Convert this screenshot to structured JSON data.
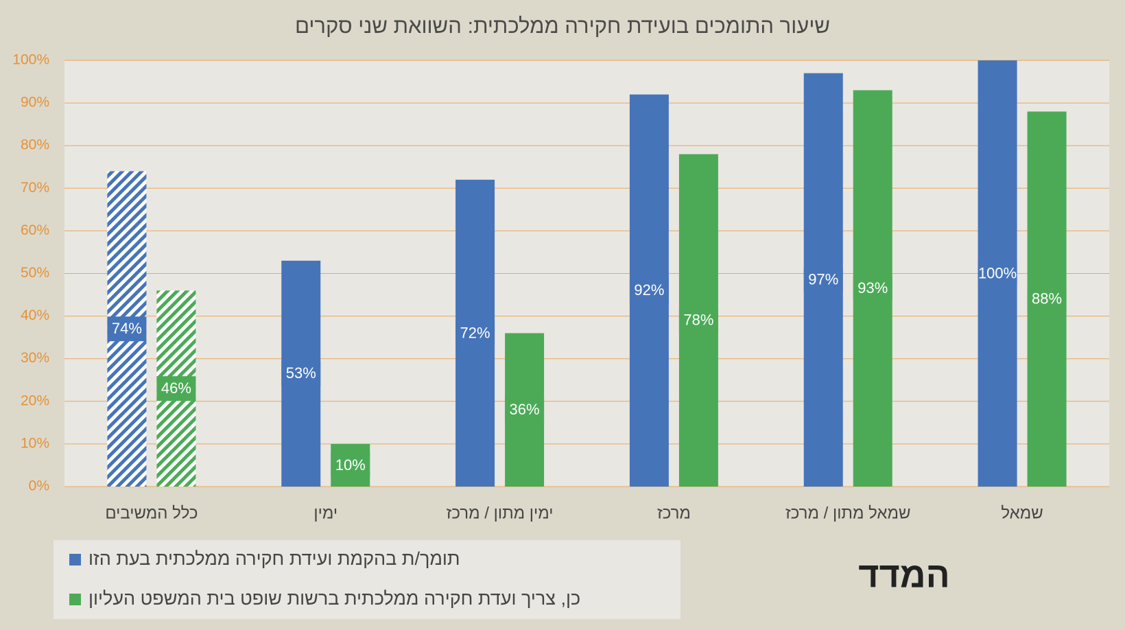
{
  "chart_data": {
    "type": "bar",
    "title": "שיעור התומכים בועידת חקירה ממלכתית: השוואת שני סקרים",
    "categories": [
      "כלל המשיבים",
      "ימין",
      "ימין מתון / מרכז",
      "מרכז",
      "שמאל מתון / מרכז",
      "שמאל"
    ],
    "series": [
      {
        "name": "תומך/ת בהקמת ועידת חקירה ממלכתית בעת הזו",
        "color": "#4674b9",
        "values": [
          74,
          53,
          72,
          92,
          97,
          100
        ],
        "value_labels": [
          "74%",
          "53%",
          "72%",
          "92%",
          "97%",
          "100%"
        ]
      },
      {
        "name": "כן, צריך ועדת חקירה ממלכתית ברשות שופט בית המשפט העליון",
        "color": "#4caa57",
        "values": [
          46,
          10,
          36,
          78,
          93,
          88
        ],
        "value_labels": [
          "46%",
          "10%",
          "36%",
          "78%",
          "93%",
          "88%"
        ]
      }
    ],
    "hatched_categories": [
      0
    ],
    "ylim": [
      0,
      100
    ],
    "yticks": [
      {
        "value": 0,
        "label": "0%"
      },
      {
        "value": 10,
        "label": "10%"
      },
      {
        "value": 20,
        "label": "20%"
      },
      {
        "value": 30,
        "label": "30%"
      },
      {
        "value": 40,
        "label": "40%"
      },
      {
        "value": 50,
        "label": "50%"
      },
      {
        "value": 60,
        "label": "60%"
      },
      {
        "value": 70,
        "label": "70%"
      },
      {
        "value": 80,
        "label": "80%"
      },
      {
        "value": 90,
        "label": "90%"
      },
      {
        "value": 100,
        "label": "100%"
      }
    ],
    "grid": true,
    "legend": "bottom-left",
    "logo": "המדד"
  }
}
